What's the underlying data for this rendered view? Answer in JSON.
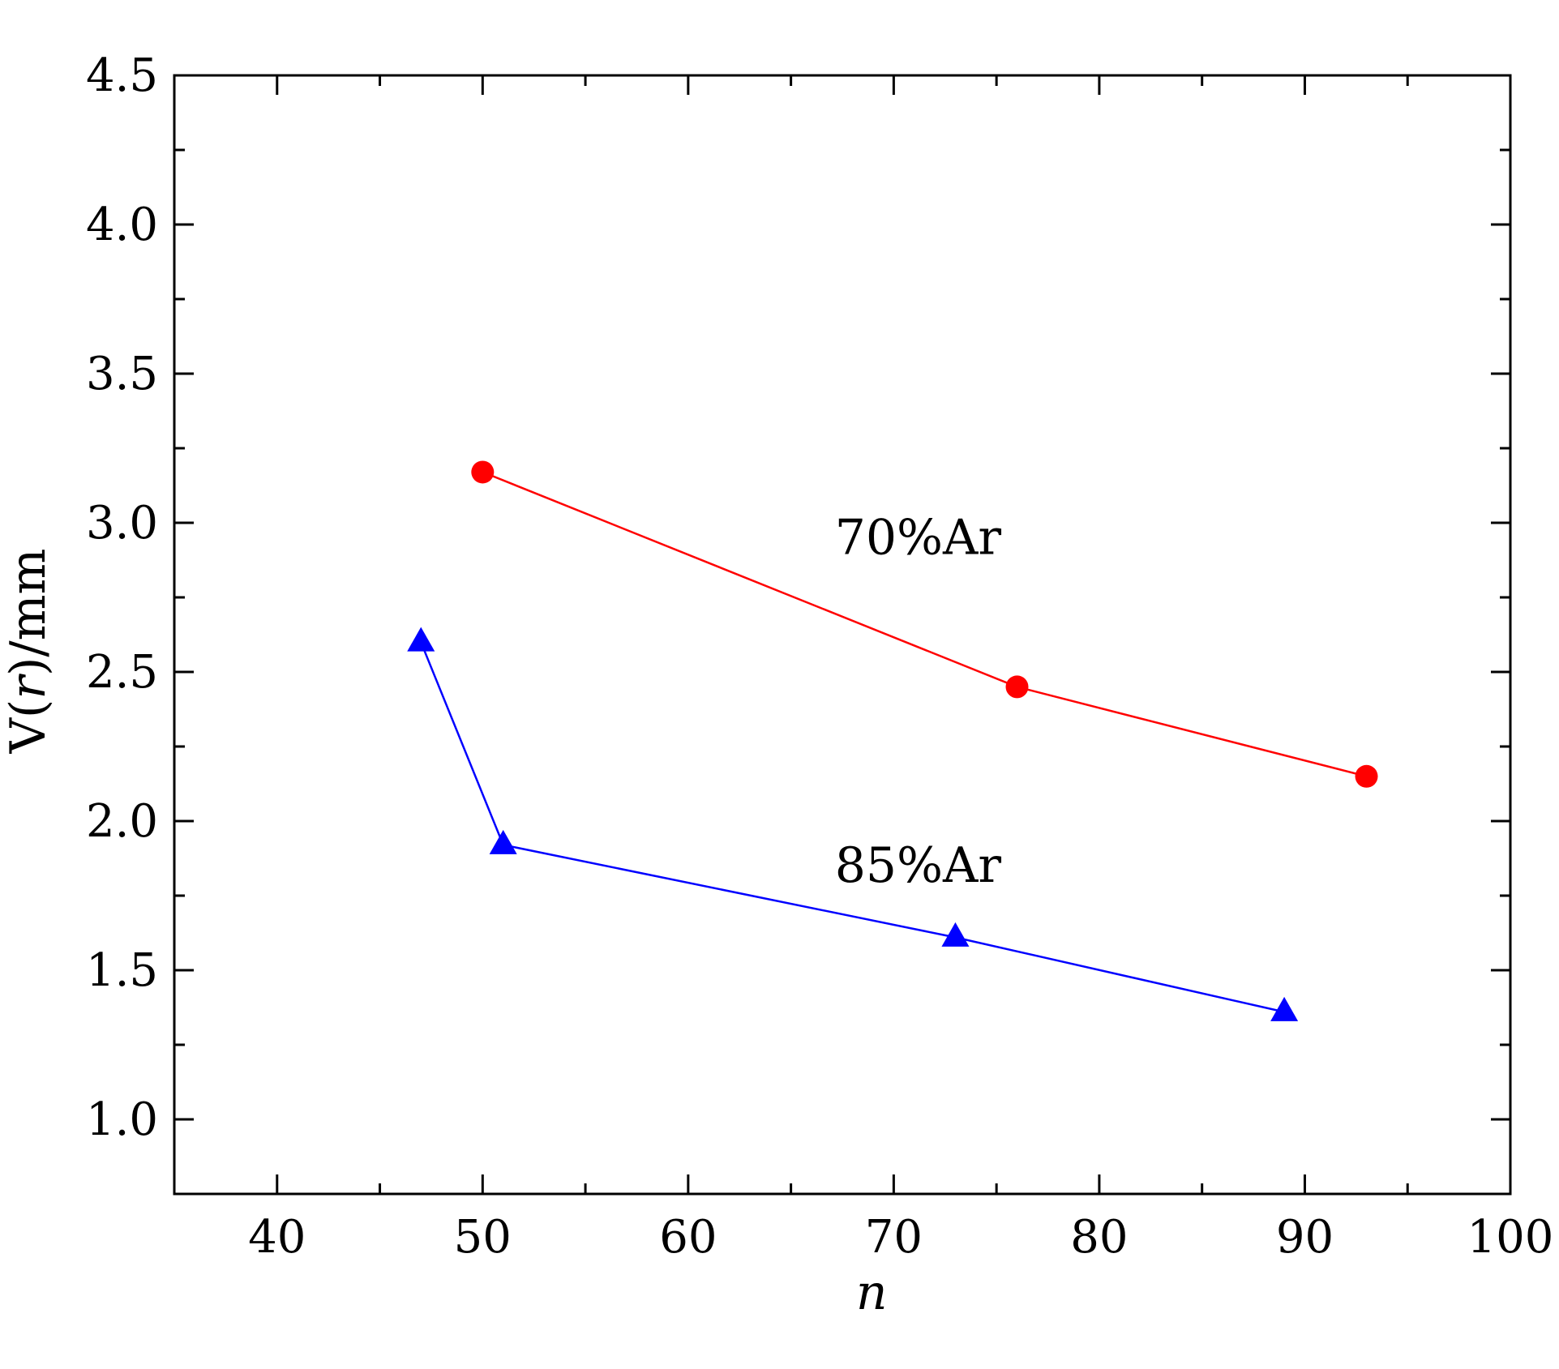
{
  "chart_data": {
    "type": "line",
    "title": "",
    "xlabel": "n",
    "ylabel": {
      "prefix": "V(",
      "var": "r",
      "suffix": ")/mm"
    },
    "xlim": [
      35,
      100
    ],
    "ylim": [
      0.75,
      4.5
    ],
    "x_ticks": [
      40,
      50,
      60,
      70,
      80,
      90,
      100
    ],
    "x_minor_ticks": [
      45,
      55,
      65,
      75,
      85,
      95
    ],
    "y_ticks": [
      "1.0",
      "1.5",
      "2.0",
      "2.5",
      "3.0",
      "3.5",
      "4.0",
      "4.5"
    ],
    "y_minor_ticks": [
      1.25,
      1.75,
      2.25,
      2.75,
      3.25,
      3.75,
      4.25
    ],
    "grid": false,
    "legend": "none",
    "series": [
      {
        "name": "70%Ar",
        "color": "#ff0000",
        "marker": "circle",
        "x": [
          50,
          76,
          93
        ],
        "y": [
          3.17,
          2.45,
          2.15
        ],
        "label_at": [
          70,
          2.95
        ]
      },
      {
        "name": "85%Ar",
        "color": "#0000ff",
        "marker": "triangle",
        "x": [
          47,
          51,
          73,
          89
        ],
        "y": [
          2.6,
          1.92,
          1.61,
          1.36
        ],
        "label_at": [
          70,
          1.85
        ]
      }
    ]
  }
}
